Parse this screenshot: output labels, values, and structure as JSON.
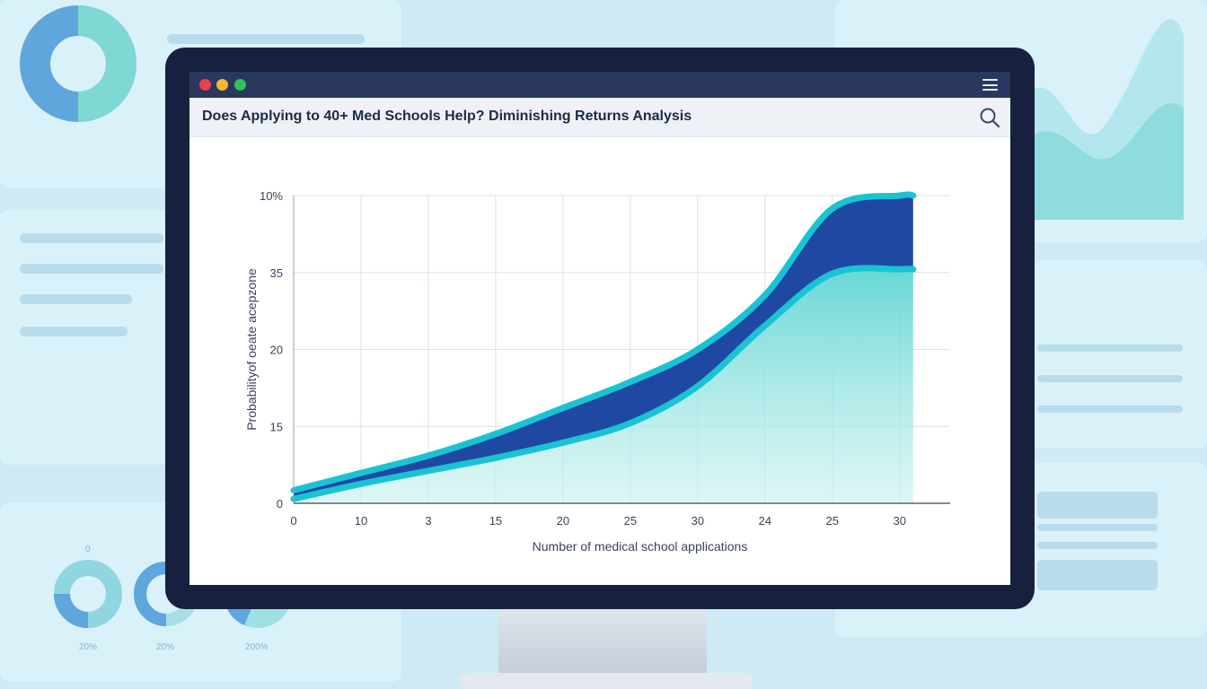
{
  "window": {
    "title": "Does Applying to 40+ Med Schools Help? Diminishing Returns Analysis",
    "controls": [
      "close",
      "minimize",
      "maximize"
    ],
    "menu_icon": "hamburger-menu-icon",
    "search_icon": "search-icon"
  },
  "colors": {
    "close": "#e8414b",
    "minimize": "#f4b730",
    "maximize": "#2fc15a",
    "band_fill": "#1f48a3",
    "band_edge": "#19c3d3",
    "area_fill": "#72dcd9",
    "titlebar": "#2a3860"
  },
  "background": {
    "donut_labels": [
      "0",
      "20%",
      "20%",
      "200%"
    ]
  },
  "chart_data": {
    "type": "area",
    "title": "",
    "xlabel": "Number of medical school applications",
    "ylabel": "Probabilityof oeate acepzone",
    "x_tick_labels": [
      "0",
      "10",
      "3",
      "15",
      "20",
      "25",
      "30",
      "24",
      "25",
      "30"
    ],
    "y_tick_labels": [
      "0",
      "15",
      "20",
      "35",
      "10%"
    ],
    "x": [
      0,
      1,
      2,
      3,
      4,
      5,
      6,
      7,
      8,
      9,
      9.2
    ],
    "series": [
      {
        "values": [
          0.3,
          0.7,
          1.1,
          1.6,
          2.2,
          2.8,
          3.55,
          4.8,
          6.8,
          7.1,
          7.1
        ]
      },
      {
        "values": [
          0.1,
          0.45,
          0.75,
          1.05,
          1.4,
          1.85,
          2.7,
          4.1,
          5.3,
          5.4,
          5.4
        ]
      }
    ],
    "xlim": [
      0,
      9.75
    ],
    "ylim": [
      0,
      7.1
    ],
    "grid": true,
    "legend": "none"
  }
}
